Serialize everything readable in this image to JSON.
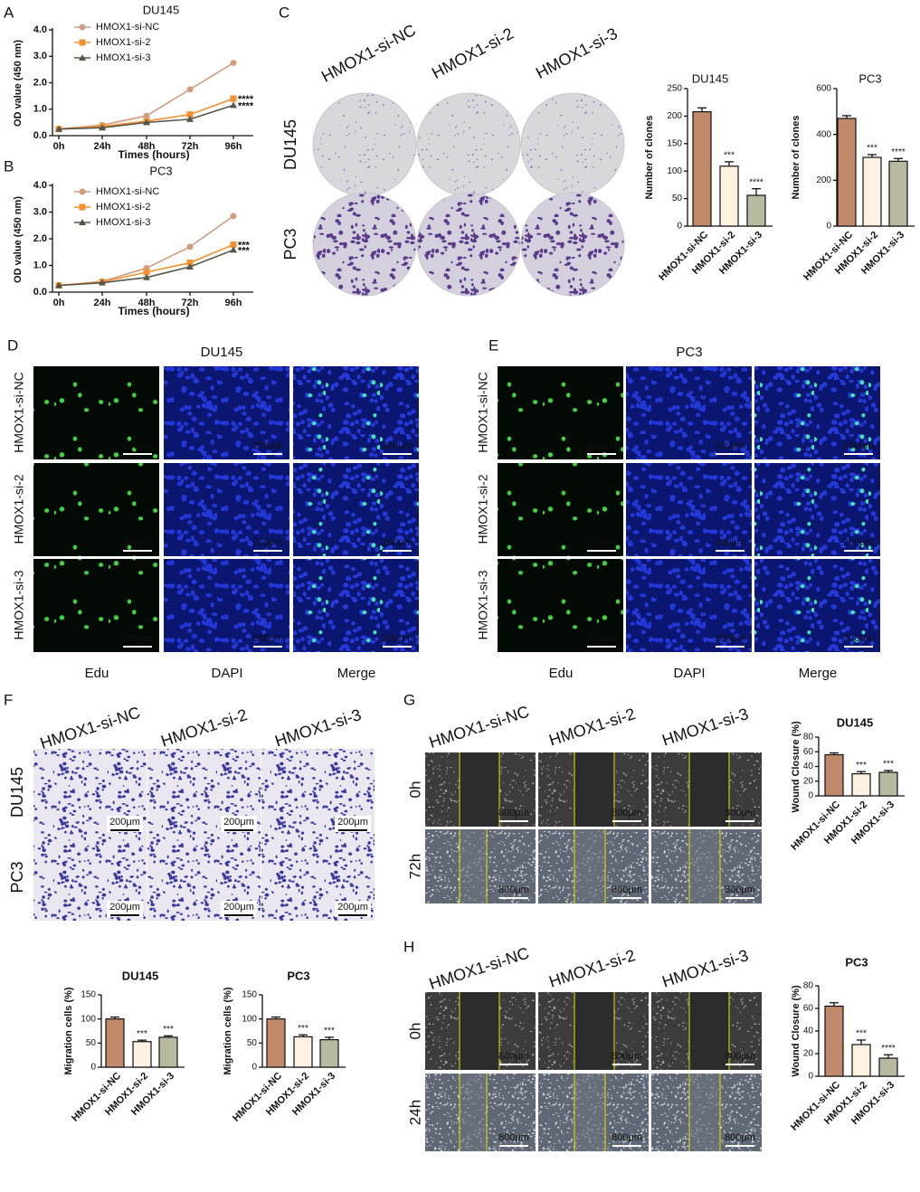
{
  "chart_data": [
    {
      "type": "line",
      "panel": "A",
      "title": "DU145",
      "categories": [
        "0h",
        "24h",
        "48h",
        "72h",
        "96h"
      ],
      "xlabel": "Times (hours)",
      "ylabel": "OD value (450 nm)",
      "ylim": [
        0,
        4
      ],
      "yticks": [
        {
          "value": 0,
          "label": "0.0"
        },
        {
          "value": 1,
          "label": "1.0"
        },
        {
          "value": 2,
          "label": "2.0"
        },
        {
          "value": 3,
          "label": "3.0"
        },
        {
          "value": 4,
          "label": "4.0"
        }
      ],
      "series": [
        {
          "name": "HMOX1-si-NC",
          "color": "#d19d80",
          "marker": "circle",
          "values": [
            0.25,
            0.4,
            0.75,
            1.75,
            2.75
          ]
        },
        {
          "name": "HMOX1-si-2",
          "color": "#f39231",
          "marker": "square",
          "values": [
            0.25,
            0.35,
            0.55,
            0.8,
            1.4
          ],
          "significance": "****"
        },
        {
          "name": "HMOX1-si-3",
          "color": "#555548",
          "marker": "triangle",
          "values": [
            0.25,
            0.3,
            0.5,
            0.62,
            1.15
          ],
          "significance": "****"
        }
      ]
    },
    {
      "type": "line",
      "panel": "B",
      "title": "PC3",
      "categories": [
        "0h",
        "24h",
        "48h",
        "72h",
        "96h"
      ],
      "xlabel": "Times (hours)",
      "ylabel": "OD value (450 nm)",
      "ylim": [
        0,
        4
      ],
      "yticks": [
        {
          "value": 0,
          "label": "0.0"
        },
        {
          "value": 1,
          "label": "1.0"
        },
        {
          "value": 2,
          "label": "2.0"
        },
        {
          "value": 3,
          "label": "3.0"
        },
        {
          "value": 4,
          "label": "4.0"
        }
      ],
      "series": [
        {
          "name": "HMOX1-si-NC",
          "color": "#d19d80",
          "marker": "circle",
          "values": [
            0.25,
            0.4,
            0.9,
            1.7,
            2.85
          ]
        },
        {
          "name": "HMOX1-si-2",
          "color": "#f39231",
          "marker": "square",
          "values": [
            0.25,
            0.38,
            0.75,
            1.1,
            1.78
          ],
          "significance": "***"
        },
        {
          "name": "HMOX1-si-3",
          "color": "#555548",
          "marker": "triangle",
          "values": [
            0.25,
            0.35,
            0.55,
            0.95,
            1.58
          ],
          "significance": "***"
        }
      ]
    },
    {
      "type": "bar",
      "title": "DU145",
      "categories": [
        "HMOX1-si-NC",
        "HMOX1-si-2",
        "HMOX1-si-3"
      ],
      "ylabel": "Number of clones",
      "ylim": [
        0,
        250
      ],
      "yticks": [
        0,
        50,
        100,
        150,
        200,
        250
      ],
      "colors": [
        "#c08a6a",
        "#fdf1e2",
        "#b7b9a0"
      ],
      "values": [
        208,
        109,
        56
      ],
      "errors": [
        7,
        8,
        12
      ],
      "significance": [
        null,
        "***",
        "****"
      ]
    },
    {
      "type": "bar",
      "title": "PC3",
      "categories": [
        "HMOX1-si-NC",
        "HMOX1-si-2",
        "HMOX1-si-3"
      ],
      "ylabel": "Number of clones",
      "ylim": [
        0,
        600
      ],
      "yticks": [
        0,
        200,
        400,
        600
      ],
      "colors": [
        "#c08a6a",
        "#fdf1e2",
        "#b7b9a0"
      ],
      "values": [
        470,
        300,
        283
      ],
      "errors": [
        12,
        12,
        12
      ],
      "significance": [
        null,
        "***",
        "****"
      ]
    },
    {
      "type": "bar",
      "title": "DU145",
      "categories": [
        "HMOX1-si-NC",
        "HMOX1-si-2",
        "HMOX1-si-3"
      ],
      "ylabel": "Migration cells (%)",
      "ylim": [
        0,
        150
      ],
      "yticks": [
        0,
        50,
        100,
        150
      ],
      "colors": [
        "#c08a6a",
        "#fdf1e2",
        "#b7b9a0"
      ],
      "values": [
        100,
        53,
        62
      ],
      "errors": [
        4,
        3,
        3
      ],
      "significance": [
        null,
        "***",
        "***"
      ]
    },
    {
      "type": "bar",
      "title": "PC3",
      "categories": [
        "HMOX1-si-NC",
        "HMOX1-si-2",
        "HMOX1-si-3"
      ],
      "ylabel": "Migration cells (%)",
      "ylim": [
        0,
        150
      ],
      "yticks": [
        0,
        50,
        100,
        150
      ],
      "colors": [
        "#c08a6a",
        "#fdf1e2",
        "#b7b9a0"
      ],
      "values": [
        100,
        63,
        57
      ],
      "errors": [
        4,
        4,
        5
      ],
      "significance": [
        null,
        "***",
        "***"
      ]
    },
    {
      "type": "bar",
      "title": "DU145",
      "categories": [
        "HMOX1-si-NC",
        "HMOX1-si-2",
        "HMOX1-si-3"
      ],
      "ylabel": "Wound Closure (%)",
      "ylim": [
        0,
        80
      ],
      "yticks": [
        0,
        20,
        40,
        60,
        80
      ],
      "colors": [
        "#c08a6a",
        "#fdf1e2",
        "#b7b9a0"
      ],
      "values": [
        56,
        30,
        32
      ],
      "errors": [
        2.5,
        3,
        2.5
      ],
      "significance": [
        null,
        "***",
        "***"
      ]
    },
    {
      "type": "bar",
      "title": "PC3",
      "categories": [
        "HMOX1-si-NC",
        "HMOX1-si-2",
        "HMOX1-si-3"
      ],
      "ylabel": "Wound Closure (%)",
      "ylim": [
        0,
        80
      ],
      "yticks": [
        0,
        20,
        40,
        60,
        80
      ],
      "colors": [
        "#c08a6a",
        "#fdf1e2",
        "#b7b9a0"
      ],
      "values": [
        62,
        28,
        16
      ],
      "errors": [
        3,
        4,
        3
      ],
      "significance": [
        null,
        "***",
        "****"
      ]
    }
  ],
  "panels": {
    "C": {
      "label": "C",
      "columns": [
        "HMOX1-si-NC",
        "HMOX1-si-2",
        "HMOX1-si-3"
      ],
      "rows": [
        "DU145",
        "PC3"
      ]
    },
    "D": {
      "label": "D",
      "title": "DU145",
      "rows": [
        "HMOX1-si-NC",
        "HMOX1-si-2",
        "HMOX1-si-3"
      ],
      "columns": [
        "Edu",
        "DAPI",
        "Merge"
      ],
      "scale_bar": "200μm"
    },
    "E": {
      "label": "E",
      "title": "PC3",
      "rows": [
        "HMOX1-si-NC",
        "HMOX1-si-2",
        "HMOX1-si-3"
      ],
      "columns": [
        "Edu",
        "DAPI",
        "Merge"
      ],
      "scale_bar": "200μm"
    },
    "F": {
      "label": "F",
      "columns": [
        "HMOX1-si-NC",
        "HMOX1-si-2",
        "HMOX1-si-3"
      ],
      "rows": [
        "DU145",
        "PC3"
      ],
      "scale_bar": "200μm"
    },
    "G": {
      "label": "G",
      "columns": [
        "HMOX1-si-NC",
        "HMOX1-si-2",
        "HMOX1-si-3"
      ],
      "rows": [
        "0h",
        "72h"
      ],
      "scale_bar": "800μm"
    },
    "H": {
      "label": "H",
      "columns": [
        "HMOX1-si-NC",
        "HMOX1-si-2",
        "HMOX1-si-3"
      ],
      "rows": [
        "0h",
        "24h"
      ],
      "scale_bar": "800μm"
    }
  }
}
